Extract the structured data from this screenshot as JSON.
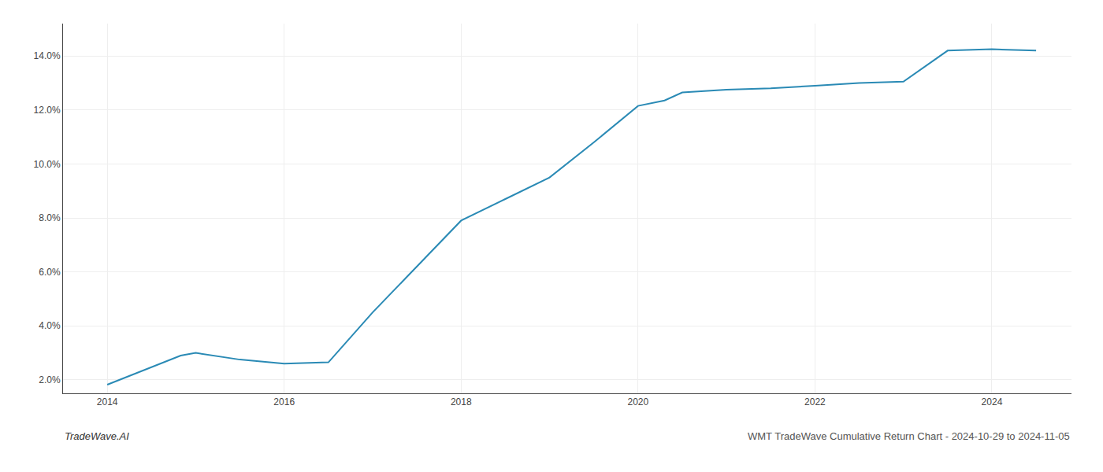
{
  "chart_data": {
    "type": "line",
    "x": [
      2014.0,
      2014.83,
      2015.0,
      2015.5,
      2016.0,
      2016.5,
      2017.0,
      2017.5,
      2018.0,
      2018.5,
      2019.0,
      2019.5,
      2020.0,
      2020.3,
      2020.5,
      2021.0,
      2021.5,
      2022.0,
      2022.5,
      2023.0,
      2023.5,
      2024.0,
      2024.5
    ],
    "values": [
      1.82,
      2.9,
      3.0,
      2.75,
      2.6,
      2.65,
      4.5,
      6.2,
      7.9,
      8.7,
      9.5,
      10.8,
      12.15,
      12.35,
      12.65,
      12.75,
      12.8,
      12.9,
      13.0,
      13.05,
      14.2,
      14.25,
      14.2
    ],
    "color": "#2a8ab5",
    "xlim": [
      2013.5,
      2024.9
    ],
    "ylim": [
      1.5,
      15.2
    ],
    "xticks": [
      2014,
      2016,
      2018,
      2020,
      2022,
      2024
    ],
    "yticks": [
      {
        "value": 2.0,
        "label": "2.0%"
      },
      {
        "value": 4.0,
        "label": "4.0%"
      },
      {
        "value": 6.0,
        "label": "6.0%"
      },
      {
        "value": 8.0,
        "label": "8.0%"
      },
      {
        "value": 10.0,
        "label": "10.0%"
      },
      {
        "value": 12.0,
        "label": "12.0%"
      },
      {
        "value": 14.0,
        "label": "14.0%"
      }
    ],
    "grid": true,
    "annotations": [
      "TradeWave.AI",
      "WMT TradeWave Cumulative Return Chart - 2024-10-29 to 2024-11-05"
    ]
  }
}
